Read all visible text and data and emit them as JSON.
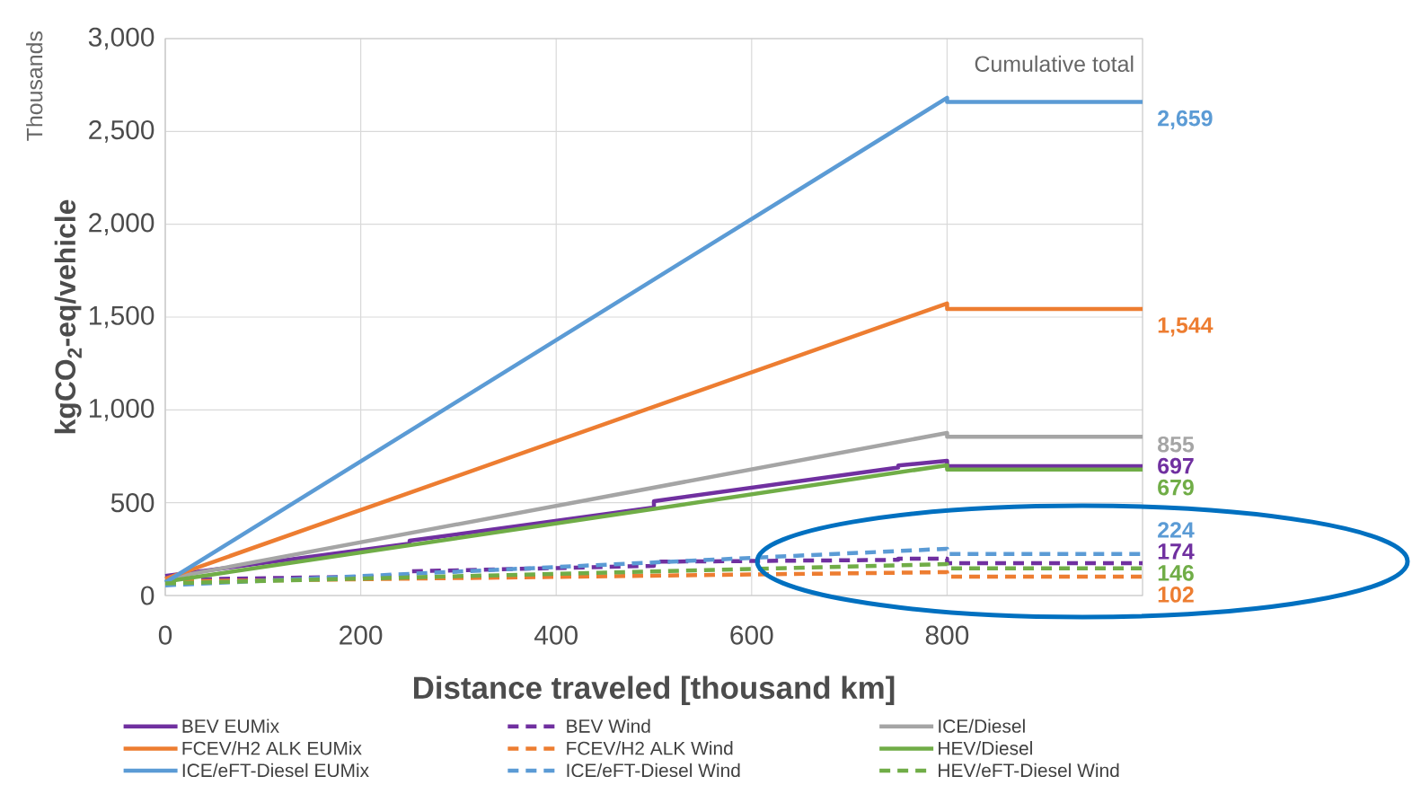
{
  "chart_data": {
    "type": "line",
    "xlabel": "Distance traveled [thousand km]",
    "ylabel": "kgCO$_{2}$-eq/vehicle",
    "annotations": [
      "Thousands",
      "Cumulative total"
    ],
    "xlim": [
      0,
      1000
    ],
    "ylim": [
      0,
      3000
    ],
    "xticks": [
      0,
      200,
      400,
      600,
      800
    ],
    "yticks": [
      0,
      500,
      {
        "value": 1000,
        "label": "1,000"
      },
      {
        "value": 1500,
        "label": "1,500"
      },
      {
        "value": 2000,
        "label": "2,000"
      },
      {
        "value": 2500,
        "label": "2,500"
      },
      {
        "value": 3000,
        "label": "3,000"
      }
    ],
    "grid": true,
    "legend": "bottom",
    "series": [
      {
        "name": "BEV EUMix",
        "color": "#7030a0",
        "line_style": "solid",
        "x": [
          0,
          250,
          250,
          500,
          500,
          750,
          750,
          800,
          800,
          1000
        ],
        "values": [
          105,
          280,
          295,
          474,
          508,
          690,
          700,
          726,
          697,
          697
        ],
        "value_labels": [
          null,
          null,
          null,
          null,
          null,
          null,
          null,
          null,
          null,
          "697"
        ]
      },
      {
        "name": "BEV Wind",
        "color": "#7030a0",
        "line_style": "dashed",
        "x": [
          0,
          250,
          250,
          500,
          500,
          750,
          750,
          800,
          800,
          1000
        ],
        "values": [
          85,
          105,
          130,
          160,
          182,
          192,
          198,
          198,
          174,
          174
        ],
        "value_labels": [
          null,
          null,
          null,
          null,
          null,
          null,
          null,
          null,
          null,
          "174"
        ]
      },
      {
        "name": "ICE/Diesel",
        "color": "#a5a5a5",
        "line_style": "solid",
        "x": [
          0,
          800,
          800,
          1000
        ],
        "values": [
          90,
          876,
          855,
          855
        ],
        "value_labels": [
          null,
          null,
          null,
          "855"
        ]
      },
      {
        "name": "FCEV/H2 ALK EUMix",
        "color": "#ed7d31",
        "line_style": "solid",
        "x": [
          0,
          800,
          800,
          1000
        ],
        "values": [
          90,
          1573,
          1544,
          1544
        ],
        "value_labels": [
          null,
          null,
          null,
          "1,544"
        ]
      },
      {
        "name": "FCEV/H2 ALK Wind",
        "color": "#ed7d31",
        "line_style": "dashed",
        "x": [
          0,
          800,
          800,
          1000
        ],
        "values": [
          75,
          126,
          102,
          102
        ],
        "value_labels": [
          null,
          null,
          null,
          "102"
        ]
      },
      {
        "name": "HEV/Diesel",
        "color": "#70ad47",
        "line_style": "solid",
        "x": [
          0,
          800,
          800,
          1000
        ],
        "values": [
          75,
          702,
          679,
          679
        ],
        "value_labels": [
          null,
          null,
          null,
          "679"
        ]
      },
      {
        "name": "ICE/eFT-Diesel EUMix",
        "color": "#5b9bd5",
        "line_style": "solid",
        "x": [
          0,
          800,
          800,
          1000
        ],
        "values": [
          70,
          2681,
          2659,
          2659
        ],
        "value_labels": [
          null,
          null,
          null,
          "2,659"
        ]
      },
      {
        "name": "ICE/eFT-Diesel Wind",
        "color": "#5b9bd5",
        "line_style": "dashed",
        "x": [
          0,
          800,
          800,
          1000
        ],
        "values": [
          55,
          252,
          224,
          224
        ],
        "value_labels": [
          null,
          null,
          null,
          "224"
        ]
      },
      {
        "name": "HEV/eFT-Diesel Wind",
        "color": "#70ad47",
        "line_style": "dashed",
        "x": [
          0,
          800,
          800,
          1000
        ],
        "values": [
          65,
          169,
          146,
          146
        ],
        "value_labels": [
          null,
          null,
          null,
          "146"
        ]
      }
    ]
  }
}
